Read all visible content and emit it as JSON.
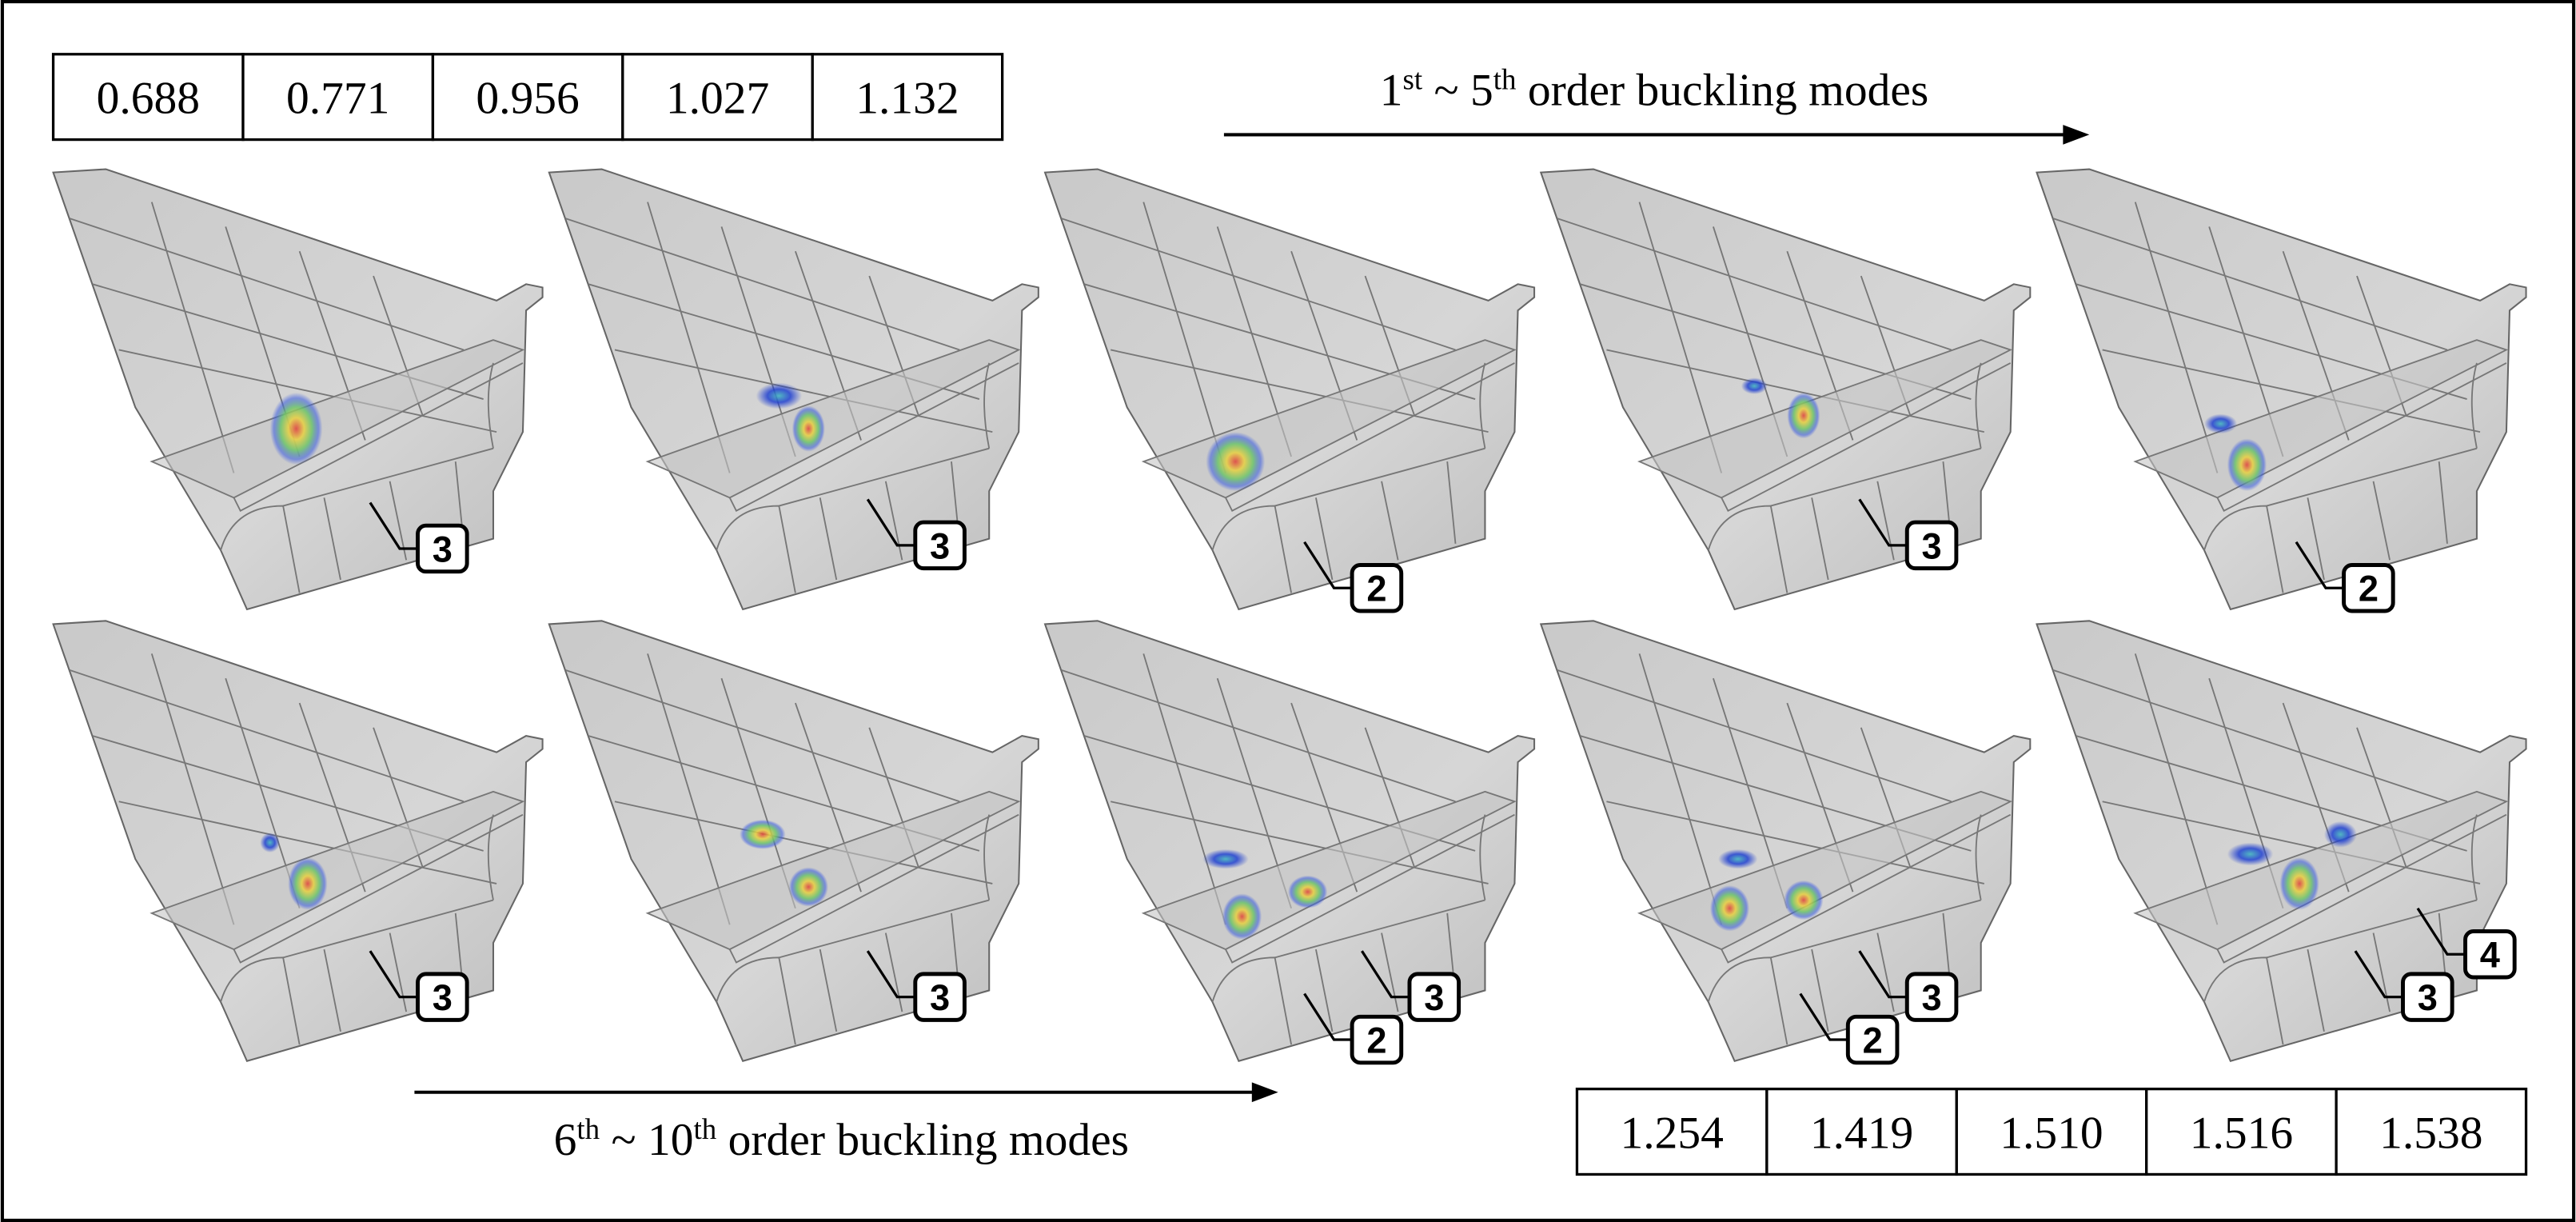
{
  "top_table": [
    "0.688",
    "0.771",
    "0.956",
    "1.027",
    "1.132"
  ],
  "bottom_table": [
    "1.254",
    "1.419",
    "1.510",
    "1.516",
    "1.538"
  ],
  "top_heading": [
    "1",
    "st",
    " ~ 5",
    "th",
    " order buckling modes"
  ],
  "bottom_heading": [
    "6",
    "th",
    " ~ 10",
    "th",
    " order buckling modes"
  ],
  "panels": [
    {
      "callouts": [
        "3"
      ]
    },
    {
      "callouts": [
        "3"
      ]
    },
    {
      "callouts": [
        "2"
      ]
    },
    {
      "callouts": [
        "3"
      ]
    },
    {
      "callouts": [
        "2"
      ]
    },
    {
      "callouts": [
        "3"
      ]
    },
    {
      "callouts": [
        "3"
      ]
    },
    {
      "callouts": [
        "3",
        "2"
      ]
    },
    {
      "callouts": [
        "3",
        "2"
      ]
    },
    {
      "callouts": [
        "4",
        "3"
      ]
    }
  ]
}
